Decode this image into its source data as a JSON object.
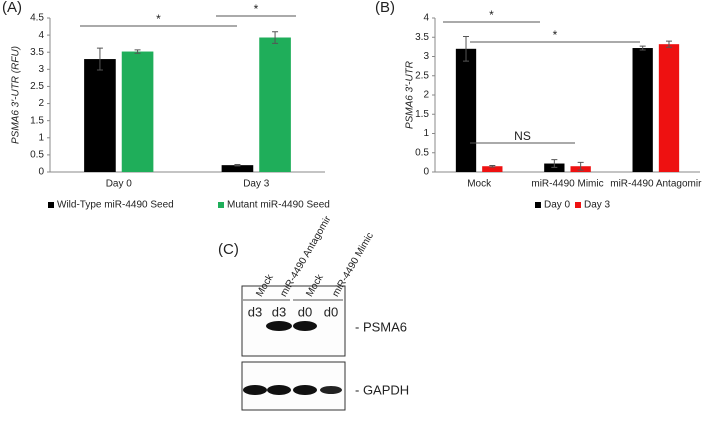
{
  "chart_data": [
    {
      "type": "bar",
      "panel": "(A)",
      "ylabel": "PSMA6 3'-UTR (RFU)",
      "categories": [
        "Day 0",
        "Day 3"
      ],
      "series": [
        {
          "name": "Wild-Type miR-4490 Seed",
          "color": "#000000",
          "values": [
            3.3,
            0.2
          ],
          "errors": [
            0.32,
            0.02
          ]
        },
        {
          "name": "Mutant miR-4490 Seed",
          "color": "#1fae5a",
          "values": [
            3.52,
            3.93
          ],
          "errors": [
            0.05,
            0.17
          ]
        }
      ],
      "ylim": [
        0,
        4.5
      ],
      "yticks": [
        0,
        0.5,
        1,
        1.5,
        2,
        2.5,
        3,
        3.5,
        4,
        4.5
      ],
      "annotations": [
        "*",
        "*"
      ]
    },
    {
      "type": "bar",
      "panel": "(B)",
      "ylabel": "PSMA6 3'-UTR",
      "categories": [
        "Mock",
        "miR-4490 Mimic",
        "miR-4490 Antagomir"
      ],
      "series": [
        {
          "name": "Day 0",
          "color": "#000000",
          "values": [
            3.2,
            0.22,
            3.22
          ],
          "errors": [
            0.32,
            0.1,
            0.05
          ]
        },
        {
          "name": "Day 3",
          "color": "#ee1111",
          "values": [
            0.15,
            0.15,
            3.32
          ],
          "errors": [
            0.02,
            0.1,
            0.08
          ]
        }
      ],
      "ylim": [
        0,
        4
      ],
      "yticks": [
        0,
        0.5,
        1,
        1.5,
        2,
        2.5,
        3,
        3.5,
        4
      ],
      "annotations": [
        "*",
        "*",
        "NS"
      ]
    }
  ],
  "blot": {
    "panel": "(C)",
    "lanes": [
      "Mock",
      "miR-4490 Antagomir",
      "Mock",
      "miR-4490 Mimic"
    ],
    "days": [
      "d3",
      "d3",
      "d0",
      "d0"
    ],
    "bands": [
      "- PSMA6",
      "- GAPDH"
    ]
  }
}
